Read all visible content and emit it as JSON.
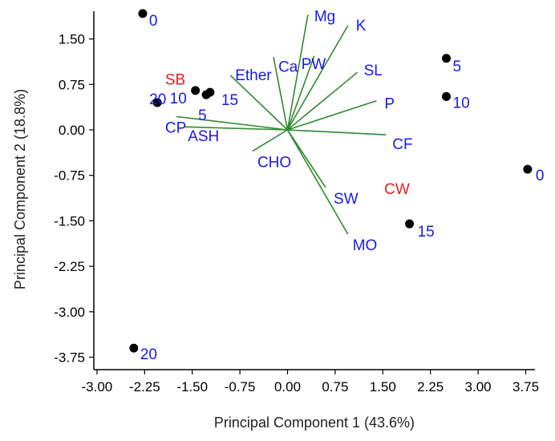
{
  "chart_data": {
    "type": "scatter",
    "title": "",
    "xlabel": "Principal Component 1 (43.6%)",
    "ylabel": "Principal Component 2 (18.8%)",
    "xlim": [
      -3.0,
      4.0
    ],
    "ylim": [
      -4.0,
      2.0
    ],
    "xticks": [
      "-3.00",
      "-2.25",
      "-1.50",
      "-0.75",
      "0.00",
      "0.75",
      "1.50",
      "2.25",
      "3.00",
      "3.75"
    ],
    "yticks": [
      "1.50",
      "0.75",
      "0.00",
      "-0.75",
      "-1.50",
      "-2.25",
      "-3.00",
      "-3.75"
    ],
    "grid": false,
    "colors": {
      "points": "#000000",
      "vectors": "#2e8b2e",
      "variable_labels": "#1a1ae6",
      "group_labels": "#e62020",
      "axes": "#000000"
    },
    "points": [
      {
        "label": "0",
        "x": -2.28,
        "y": 1.92
      },
      {
        "label": "20",
        "x": -2.05,
        "y": 0.45
      },
      {
        "label": "10",
        "x": -1.45,
        "y": 0.65
      },
      {
        "label": "5",
        "x": -1.28,
        "y": 0.58
      },
      {
        "label": "15",
        "x": -1.22,
        "y": 0.62
      },
      {
        "label": "5",
        "x": 2.5,
        "y": 1.18
      },
      {
        "label": "10",
        "x": 2.5,
        "y": 0.55
      },
      {
        "label": "0",
        "x": 3.78,
        "y": -0.65
      },
      {
        "label": "15",
        "x": 1.92,
        "y": -1.55
      },
      {
        "label": "20",
        "x": -2.42,
        "y": -3.6
      }
    ],
    "vectors": [
      {
        "label": "Mg",
        "x": 0.32,
        "y": 1.9
      },
      {
        "label": "K",
        "x": 0.95,
        "y": 1.72
      },
      {
        "label": "Ca",
        "x": -0.22,
        "y": 1.2
      },
      {
        "label": "PW",
        "x": 0.42,
        "y": 1.22
      },
      {
        "label": "SL",
        "x": 1.1,
        "y": 0.95
      },
      {
        "label": "P",
        "x": 1.4,
        "y": 0.48
      },
      {
        "label": "CF",
        "x": 1.55,
        "y": -0.08
      },
      {
        "label": "Ether",
        "x": -0.9,
        "y": 0.9
      },
      {
        "label": "CP",
        "x": -1.75,
        "y": 0.22
      },
      {
        "label": "ASH",
        "x": -1.62,
        "y": 0.05
      },
      {
        "label": "CHO",
        "x": -0.55,
        "y": -0.35
      },
      {
        "label": "SW",
        "x": 0.6,
        "y": -0.95
      },
      {
        "label": "MO",
        "x": 0.95,
        "y": -1.72
      }
    ],
    "group_labels": [
      {
        "label": "SB",
        "x": -1.7,
        "y": 0.85
      },
      {
        "label": "CW",
        "x": 1.75,
        "y": -0.95
      }
    ]
  }
}
